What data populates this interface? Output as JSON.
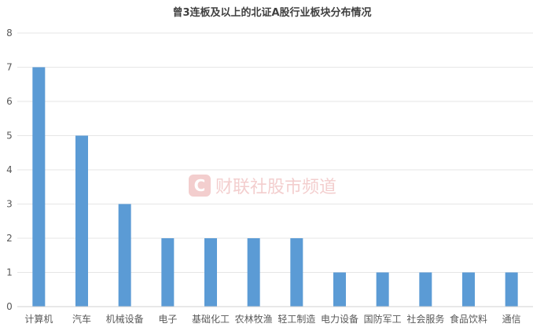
{
  "watermark": {
    "text": "财联社股市频道",
    "logo_letter": "C",
    "color": "#f2c9c9"
  },
  "chart_data": {
    "type": "bar",
    "title": "曾3连板及以上的北证A股行业板块分布情况",
    "xlabel": "",
    "ylabel": "",
    "ylim": [
      0,
      8
    ],
    "yticks": [
      0,
      1,
      2,
      3,
      4,
      5,
      6,
      7,
      8
    ],
    "grid": true,
    "legend": "none",
    "bar_color": "#5b9bd5",
    "categories": [
      "计算机",
      "汽车",
      "机械设备",
      "电子",
      "基础化工",
      "农林牧渔",
      "轻工制造",
      "电力设备",
      "国防军工",
      "社会服务",
      "食品饮料",
      "通信"
    ],
    "values": [
      7,
      5,
      3,
      2,
      2,
      2,
      2,
      1,
      1,
      1,
      1,
      1
    ]
  }
}
